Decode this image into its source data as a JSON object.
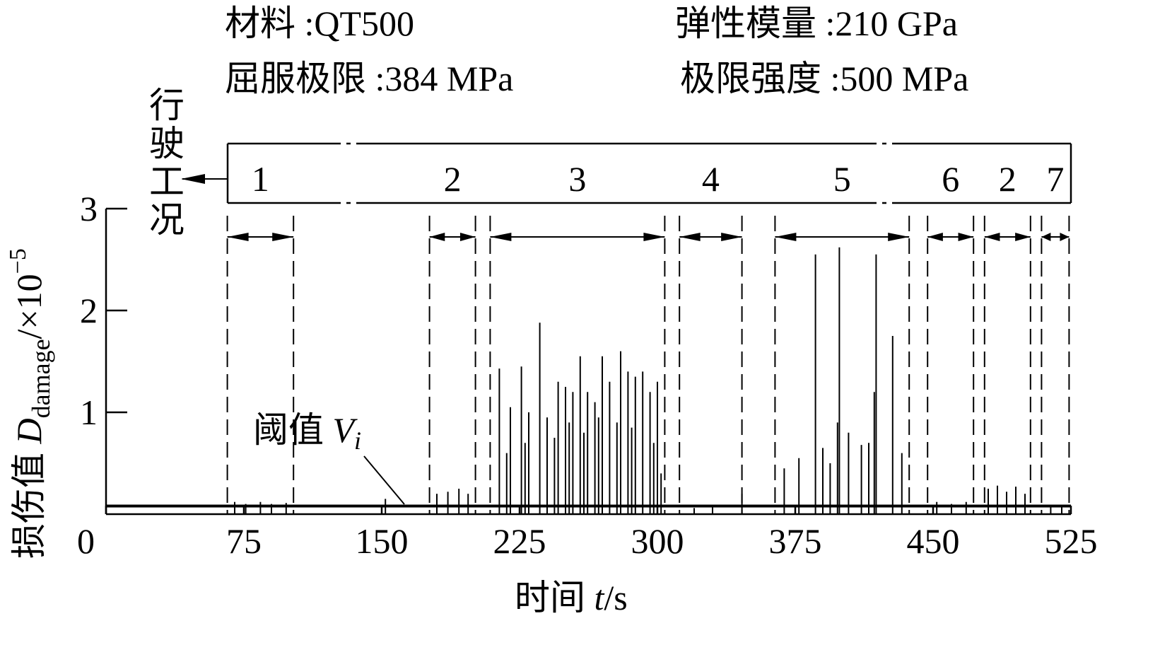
{
  "chart_data": {
    "type": "spike",
    "annotations": [
      "材料 :QT500",
      "弹性模量 :210 GPa",
      "屈服极限 :384 MPa",
      "极限强度 :500 MPa"
    ],
    "ylabel": [
      "损伤值 ",
      "D",
      "damage",
      "/×10",
      "−5"
    ],
    "xlabel": [
      "时间 ",
      "t",
      "/s"
    ],
    "conditions_label": "行驶工况",
    "threshold": 0.08,
    "threshold_label": [
      "阈值 ",
      "V",
      "i"
    ],
    "segments": [
      {
        "label": "1",
        "start": 66,
        "end": 102
      },
      {
        "label": "2",
        "start": 176,
        "end": 201
      },
      {
        "label": "3",
        "start": 209,
        "end": 304
      },
      {
        "label": "4",
        "start": 312,
        "end": 346
      },
      {
        "label": "5",
        "start": 364,
        "end": 437
      },
      {
        "label": "6",
        "start": 447,
        "end": 472
      },
      {
        "label": "2",
        "start": 478,
        "end": 503
      },
      {
        "label": "7",
        "start": 509,
        "end": 524
      }
    ],
    "x": [
      70,
      76,
      84,
      90,
      98,
      152,
      180,
      186,
      192,
      197,
      214,
      218,
      220,
      226,
      228,
      230,
      236,
      240,
      244,
      246,
      250,
      252,
      254,
      258,
      260,
      262,
      266,
      268,
      270,
      274,
      278,
      280,
      284,
      286,
      288,
      292,
      296,
      298,
      300,
      302,
      320,
      330,
      346,
      369,
      377,
      386,
      390,
      394,
      398,
      399,
      404,
      411,
      415,
      418,
      419,
      428,
      433,
      452,
      460,
      468,
      480,
      485,
      490,
      495,
      500,
      514,
      520
    ],
    "values": [
      0.12,
      0.1,
      0.12,
      0.1,
      0.11,
      0.15,
      0.2,
      0.22,
      0.25,
      0.2,
      1.43,
      0.6,
      1.05,
      1.45,
      0.7,
      1.0,
      1.88,
      0.95,
      0.75,
      1.3,
      1.25,
      0.9,
      1.2,
      1.55,
      0.8,
      1.2,
      1.1,
      0.95,
      1.55,
      1.3,
      0.9,
      1.6,
      1.4,
      0.85,
      1.35,
      1.4,
      1.2,
      0.7,
      1.3,
      0.4,
      0.06,
      0.07,
      0.2,
      0.45,
      0.55,
      2.55,
      0.65,
      0.5,
      0.9,
      2.62,
      0.8,
      0.68,
      0.7,
      1.2,
      2.55,
      1.75,
      0.6,
      0.12,
      0.1,
      0.12,
      0.25,
      0.28,
      0.22,
      0.27,
      0.2,
      0.08,
      0.07
    ],
    "color": "#000000",
    "xlim": [
      0,
      525
    ],
    "xticks": [
      0,
      75,
      150,
      225,
      300,
      375,
      450,
      525
    ],
    "ylim": [
      0,
      3
    ],
    "yticks": [
      1,
      2,
      3
    ]
  }
}
